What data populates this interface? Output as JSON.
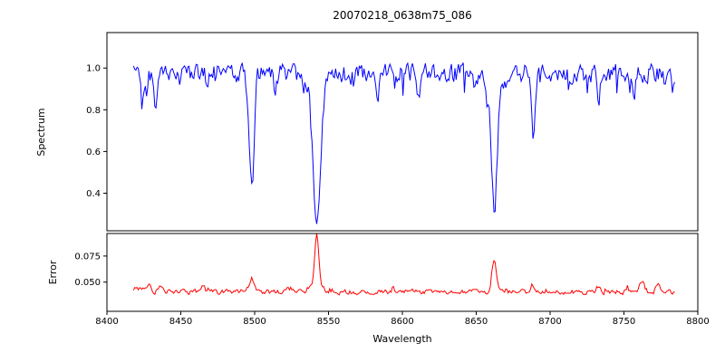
{
  "title": "20070218_0638m75_086",
  "axes": {
    "xlabel": "Wavelength",
    "xlim": [
      8400,
      8800
    ],
    "x_ticks": [
      8400,
      8450,
      8500,
      8550,
      8600,
      8650,
      8700,
      8750,
      8800
    ],
    "x_tick_labels": [
      "8400",
      "8450",
      "8500",
      "8550",
      "8600",
      "8650",
      "8700",
      "8750",
      "8800"
    ],
    "top": {
      "ylabel": "Spectrum",
      "ylim": [
        0.22,
        1.17
      ],
      "y_ticks": [
        0.4,
        0.6,
        0.8,
        1.0
      ],
      "y_tick_labels": [
        "0.4",
        "0.6",
        "0.8",
        "1.0"
      ]
    },
    "bottom": {
      "ylabel": "Error",
      "ylim": [
        0.022,
        0.0966
      ],
      "y_ticks": [
        0.05,
        0.075
      ],
      "y_tick_labels": [
        "0.050",
        "0.075"
      ]
    }
  },
  "chart_data": [
    {
      "type": "line",
      "name": "Spectrum",
      "color": "#0000ff",
      "x_start": 8418,
      "x_end": 8785,
      "x_step": 0.8,
      "seed": 20070218,
      "continuum": 0.975,
      "noise_amplitude": 0.05,
      "deep_noise_prob": 0.07,
      "deep_noise_scale": 0.1,
      "ymax_clip": 1.12,
      "absorption_lines": [
        {
          "center": 8498.0,
          "depth": 0.56,
          "sigma": 1.6
        },
        {
          "center": 8542.1,
          "depth": 0.67,
          "sigma": 2.4
        },
        {
          "center": 8542.1,
          "depth": 0.05,
          "sigma": 6.5
        },
        {
          "center": 8662.2,
          "depth": 0.6,
          "sigma": 2.0
        },
        {
          "center": 8662.2,
          "depth": 0.05,
          "sigma": 6.0
        },
        {
          "center": 8688.6,
          "depth": 0.3,
          "sigma": 1.1
        },
        {
          "center": 8424.0,
          "depth": 0.16,
          "sigma": 1.0
        },
        {
          "center": 8433.0,
          "depth": 0.2,
          "sigma": 1.1
        },
        {
          "center": 8468.0,
          "depth": 0.1,
          "sigma": 0.9
        },
        {
          "center": 8514.0,
          "depth": 0.1,
          "sigma": 0.9
        },
        {
          "center": 8583.0,
          "depth": 0.12,
          "sigma": 1.0
        },
        {
          "center": 8611.0,
          "depth": 0.1,
          "sigma": 0.9
        },
        {
          "center": 8733.0,
          "depth": 0.12,
          "sigma": 1.0
        },
        {
          "center": 8757.0,
          "depth": 0.1,
          "sigma": 0.9
        }
      ]
    },
    {
      "type": "line",
      "name": "Error",
      "color": "#ff0000",
      "x_start": 8418,
      "x_end": 8785,
      "x_step": 0.8,
      "seed": 638,
      "baseline": 0.0405,
      "noise_amplitude": 0.0025,
      "spike_prob": 0.07,
      "spike_scale": 0.005,
      "peaks": [
        {
          "center": 8420,
          "height": 0.004,
          "sigma": 3.0
        },
        {
          "center": 8428,
          "height": 0.007,
          "sigma": 1.6
        },
        {
          "center": 8436,
          "height": 0.004,
          "sigma": 1.2
        },
        {
          "center": 8465,
          "height": 0.005,
          "sigma": 1.4
        },
        {
          "center": 8498,
          "height": 0.013,
          "sigma": 1.6
        },
        {
          "center": 8523,
          "height": 0.004,
          "sigma": 1.2
        },
        {
          "center": 8542,
          "height": 0.05,
          "sigma": 1.3
        },
        {
          "center": 8542,
          "height": 0.007,
          "sigma": 4.0
        },
        {
          "center": 8605,
          "height": 0.003,
          "sigma": 1.5
        },
        {
          "center": 8662,
          "height": 0.031,
          "sigma": 1.5
        },
        {
          "center": 8688,
          "height": 0.007,
          "sigma": 1.3
        },
        {
          "center": 8733,
          "height": 0.004,
          "sigma": 1.2
        },
        {
          "center": 8762,
          "height": 0.009,
          "sigma": 1.8
        },
        {
          "center": 8773,
          "height": 0.006,
          "sigma": 1.3
        }
      ]
    }
  ]
}
